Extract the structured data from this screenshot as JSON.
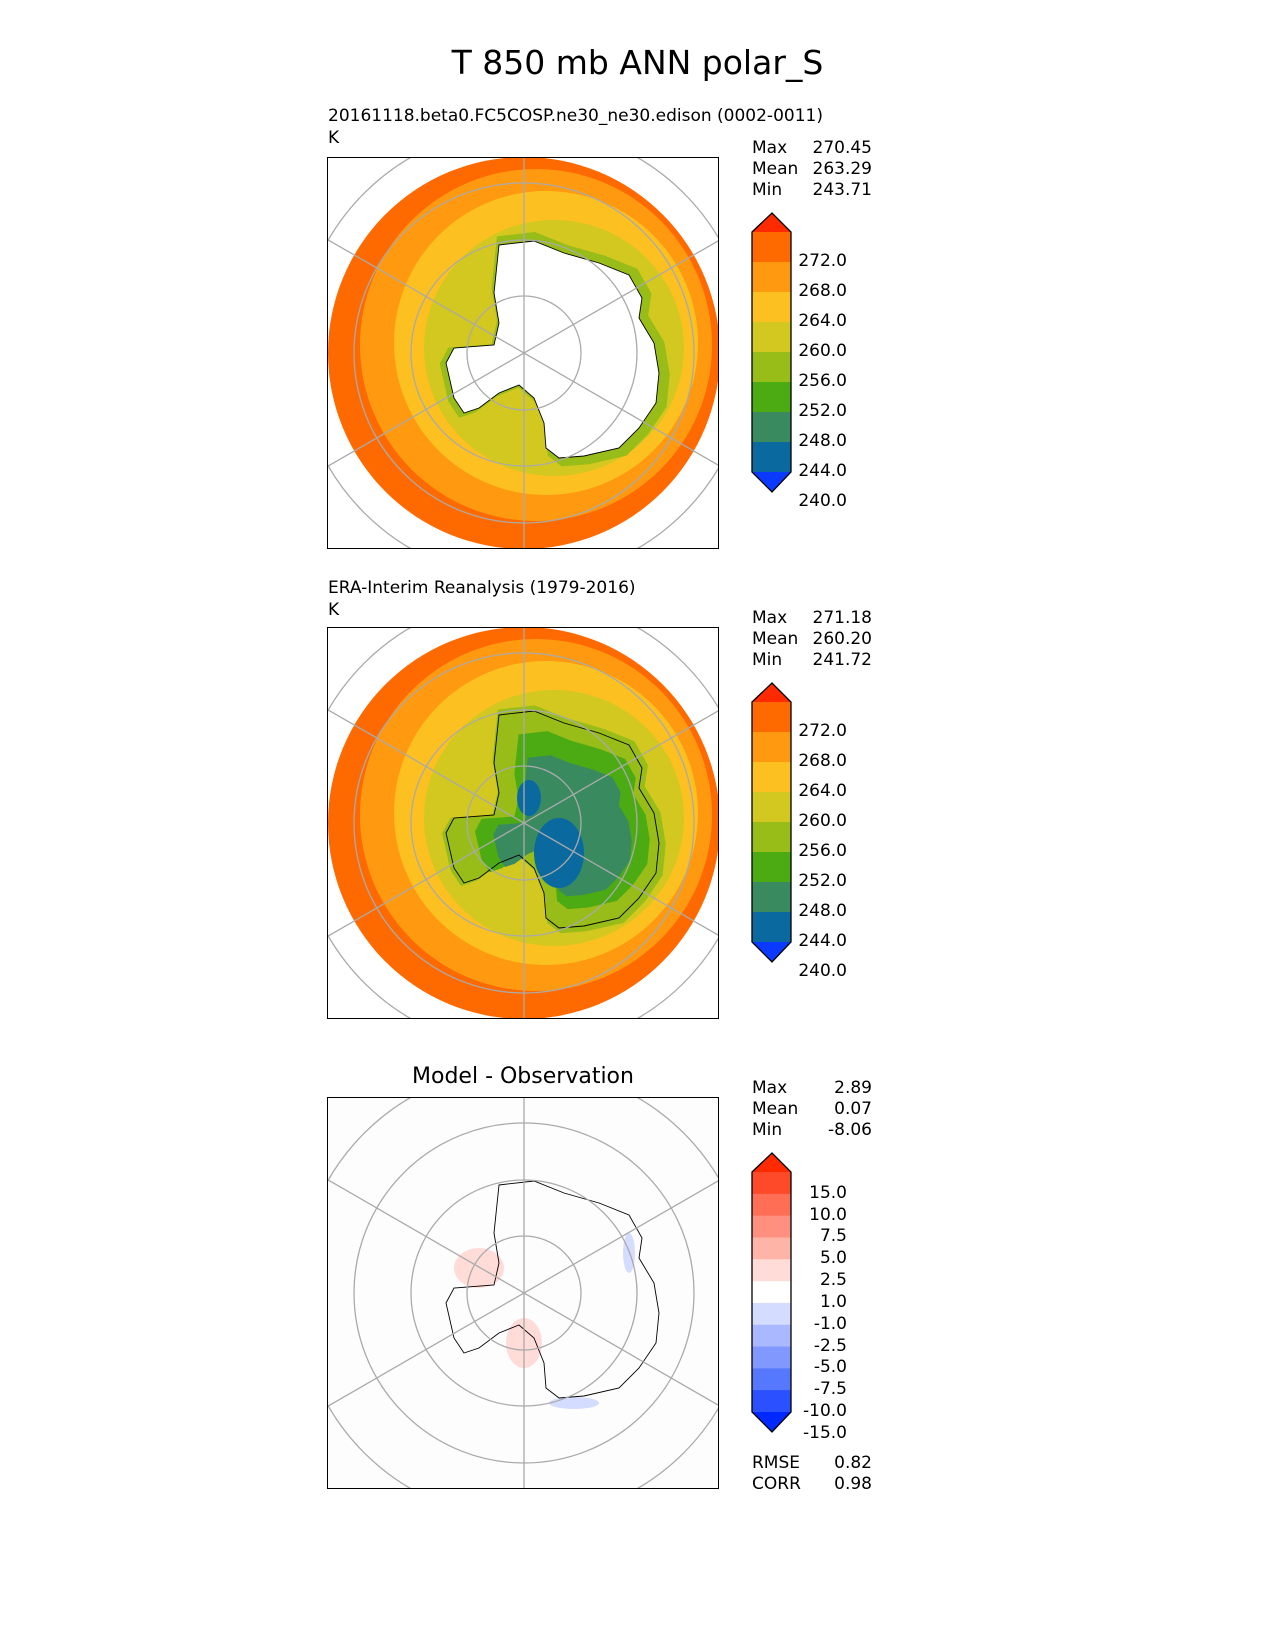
{
  "title": "T 850 mb ANN polar_S",
  "panels": [
    {
      "title": "20161118.beta0.FC5COSP.ne30_ne30.edison (0002-0011)",
      "units": "K",
      "stats": [
        [
          "Max",
          "270.45"
        ],
        [
          "Mean",
          "263.29"
        ],
        [
          "Min",
          "243.71"
        ]
      ]
    },
    {
      "title": "ERA-Interim Reanalysis (1979-2016)",
      "units": "K",
      "stats": [
        [
          "Max",
          "271.18"
        ],
        [
          "Mean",
          "260.20"
        ],
        [
          "Min",
          "241.72"
        ]
      ]
    },
    {
      "title": "Model - Observation",
      "units": "",
      "stats": [
        [
          "Max",
          "2.89"
        ],
        [
          "Mean",
          "0.07"
        ],
        [
          "Min",
          "-8.06"
        ]
      ],
      "extra": [
        [
          "RMSE",
          "0.82"
        ],
        [
          "CORR",
          "0.98"
        ]
      ]
    }
  ],
  "colorbars": {
    "abs": {
      "labels": [
        "272.0",
        "268.0",
        "264.0",
        "260.0",
        "256.0",
        "252.0",
        "248.0",
        "244.0",
        "240.0"
      ],
      "colors": [
        "#ff2a00",
        "#ff6a00",
        "#ff9a10",
        "#fcc020",
        "#d2c820",
        "#98bc18",
        "#4caa12",
        "#3a8a60",
        "#0a6aa0",
        "#0a3aff"
      ]
    },
    "diff": {
      "labels": [
        "15.0",
        "10.0",
        "7.5",
        "5.0",
        "2.5",
        "1.0",
        "-1.0",
        "-2.5",
        "-5.0",
        "-7.5",
        "-10.0",
        "-15.0"
      ],
      "colors": [
        "#ff2a00",
        "#ff4a2a",
        "#ff6e55",
        "#ff9080",
        "#ffb4a8",
        "#ffdcd8",
        "#ffffff",
        "#d4dcff",
        "#aab8ff",
        "#8098ff",
        "#5678ff",
        "#2a50ff",
        "#0028ff"
      ]
    }
  }
}
